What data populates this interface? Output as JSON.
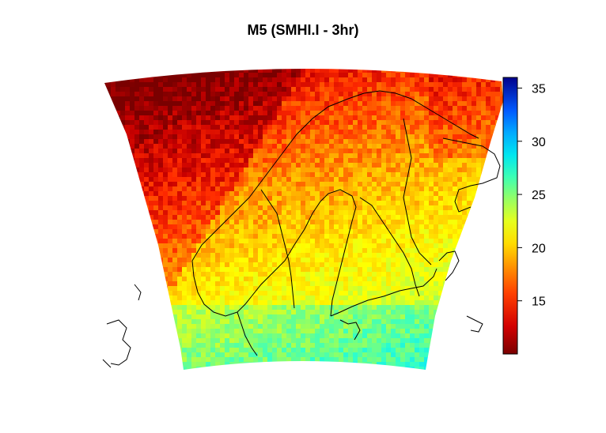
{
  "title": "M5 (SMHI.I - 3hr)",
  "colorbar": {
    "min": 10,
    "max": 36,
    "ticks": [
      "15",
      "20",
      "25",
      "30",
      "35"
    ],
    "tick_values": [
      15,
      20,
      25,
      30,
      35
    ],
    "colors": [
      "#7a0000",
      "#c80000",
      "#ff2a00",
      "#ff7a00",
      "#ffc800",
      "#ffff00",
      "#c8ff32",
      "#7aff7a",
      "#32ffc8",
      "#00e6ff",
      "#0096ff",
      "#0040ff",
      "#000096"
    ]
  }
}
